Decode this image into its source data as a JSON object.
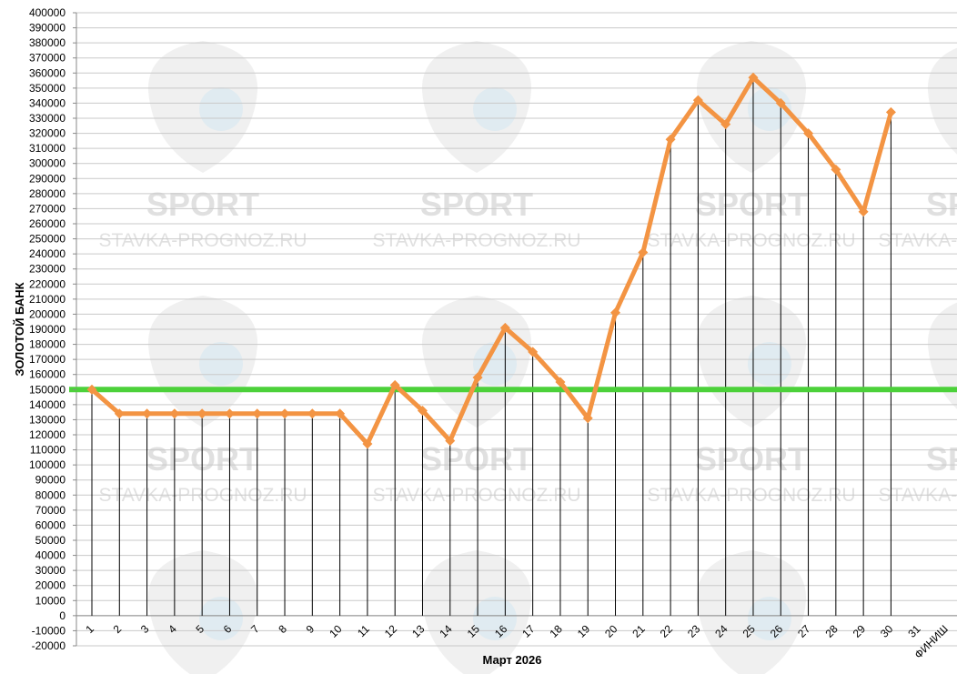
{
  "chart_data": {
    "type": "line",
    "title": "",
    "xlabel": "Март 2026",
    "ylabel": "ЗОЛОТОЙ БАНК",
    "ylim": [
      -20000,
      400000
    ],
    "ytick_step": 10000,
    "categories": [
      "1",
      "2",
      "3",
      "4",
      "5",
      "6",
      "7",
      "8",
      "9",
      "10",
      "11",
      "12",
      "13",
      "14",
      "15",
      "16",
      "17",
      "18",
      "19",
      "20",
      "21",
      "22",
      "23",
      "24",
      "25",
      "26",
      "27",
      "28",
      "29",
      "30",
      "31",
      "ФИНИШ"
    ],
    "series": [
      {
        "color": "#f39443",
        "values": [
          150000,
          134000,
          134000,
          134000,
          134000,
          134000,
          134000,
          134000,
          134000,
          134000,
          114000,
          153000,
          136000,
          116000,
          158000,
          191000,
          175000,
          155000,
          131000,
          201000,
          241000,
          316000,
          342000,
          326000,
          357000,
          340000,
          320000,
          296000,
          268000,
          334000,
          null,
          null
        ]
      }
    ],
    "reference_line": {
      "value": 150000,
      "color": "#4cd13a"
    },
    "grid": true,
    "watermark": {
      "line1": "SPORT",
      "line2": "STAVKA-PROGNOZ.RU"
    }
  }
}
